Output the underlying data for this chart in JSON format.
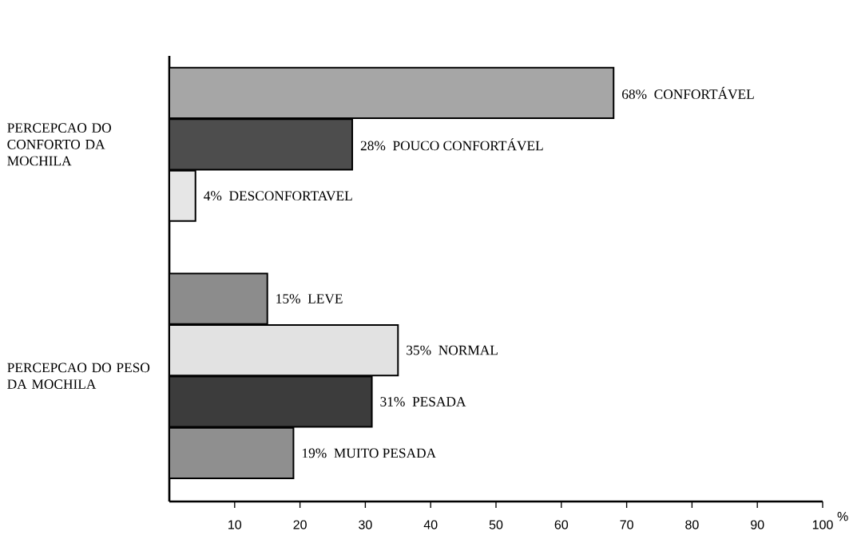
{
  "chart_data": {
    "type": "bar",
    "orientation": "horizontal",
    "categories": [
      "CONFORTÁVEL",
      "POUCO CONFORTÁVEL",
      "DESCONFORTAVEL",
      null,
      "LEVE",
      "NORMAL",
      "PESADA",
      "MUITO PESADA"
    ],
    "values": [
      68,
      28,
      4,
      null,
      15,
      35,
      31,
      19
    ],
    "value_labels": [
      "68%",
      "28%",
      "4%",
      null,
      "15%",
      "35%",
      "31%",
      "19%"
    ],
    "colors": [
      "#a6a6a6",
      "#4d4d4d",
      "#e6e6e6",
      null,
      "#8c8c8c",
      "#e2e2e2",
      "#3c3c3c",
      "#8f8f8f"
    ],
    "xlabel": "%",
    "xlim": [
      0,
      100
    ],
    "xticks": [
      10,
      20,
      30,
      40,
      50,
      60,
      70,
      80,
      90,
      100
    ],
    "annotations": [
      "PERCEPCAO DO CONFORTO DA MOCHILA",
      "PERCEPCAO DO PESO DA MOCHILA"
    ]
  }
}
